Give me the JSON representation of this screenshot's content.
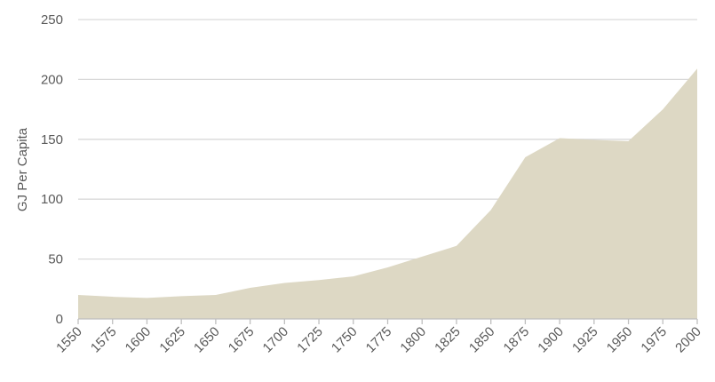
{
  "chart_data": {
    "type": "area",
    "ylabel": "GJ Per Capita",
    "xlabel": "",
    "title": "",
    "x": [
      1550,
      1575,
      1600,
      1625,
      1650,
      1675,
      1700,
      1725,
      1750,
      1775,
      1800,
      1825,
      1850,
      1875,
      1900,
      1925,
      1950,
      1975,
      2000
    ],
    "values": [
      20,
      18.5,
      17.5,
      19,
      20,
      26,
      30,
      32.5,
      35.5,
      43,
      52,
      61,
      91,
      135,
      151,
      149.5,
      148.5,
      175,
      209
    ],
    "ylim": [
      0,
      250
    ],
    "yticks": [
      0,
      50,
      100,
      150,
      200,
      250
    ],
    "xlim": [
      1550,
      2000
    ],
    "grid": true,
    "color": "#ddd8c4"
  }
}
